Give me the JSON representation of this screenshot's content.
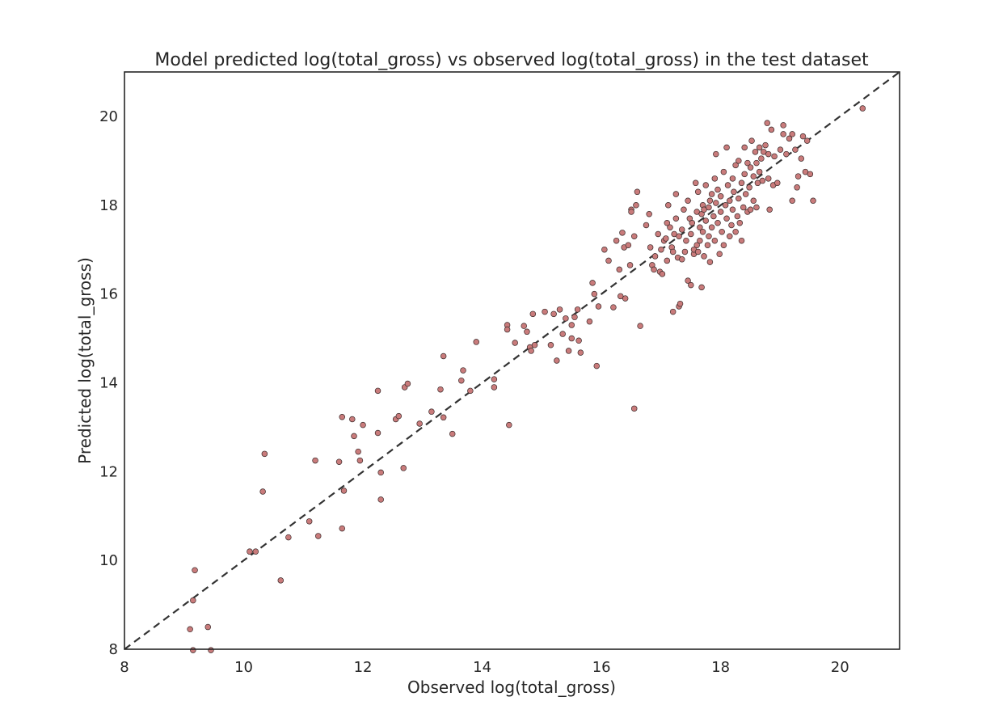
{
  "chart_data": {
    "type": "scatter",
    "title": "Model predicted log(total_gross) vs observed log(total_gross) in the test dataset",
    "xlabel": "Observed log(total_gross)",
    "ylabel": "Predicted log(total_gross)",
    "xlim": [
      8,
      21
    ],
    "ylim": [
      8,
      21
    ],
    "xticks": [
      8,
      10,
      12,
      14,
      16,
      18,
      20
    ],
    "yticks": [
      8,
      10,
      12,
      14,
      16,
      18,
      20
    ],
    "grid": false,
    "reference_line": {
      "style": "dashed",
      "from": [
        8,
        8
      ],
      "to": [
        21,
        21
      ],
      "color": "#333333"
    },
    "marker_color": "#c97b7b",
    "marker_edge_color": "#3a2a2a",
    "points": [
      [
        9.1,
        8.45
      ],
      [
        9.15,
        7.98
      ],
      [
        9.4,
        8.5
      ],
      [
        9.45,
        7.98
      ],
      [
        9.15,
        9.1
      ],
      [
        9.18,
        9.78
      ],
      [
        10.62,
        9.55
      ],
      [
        10.1,
        10.2
      ],
      [
        10.2,
        10.2
      ],
      [
        10.75,
        10.52
      ],
      [
        11.1,
        10.88
      ],
      [
        11.25,
        10.55
      ],
      [
        11.65,
        10.72
      ],
      [
        10.32,
        11.55
      ],
      [
        11.68,
        11.57
      ],
      [
        12.3,
        11.37
      ],
      [
        12.3,
        11.98
      ],
      [
        12.68,
        12.08
      ],
      [
        11.2,
        12.25
      ],
      [
        11.6,
        12.22
      ],
      [
        11.95,
        12.25
      ],
      [
        10.35,
        12.4
      ],
      [
        11.92,
        12.45
      ],
      [
        11.85,
        12.8
      ],
      [
        12.25,
        12.87
      ],
      [
        11.65,
        13.23
      ],
      [
        11.82,
        13.18
      ],
      [
        12.0,
        13.05
      ],
      [
        12.55,
        13.18
      ],
      [
        12.6,
        13.25
      ],
      [
        12.95,
        13.08
      ],
      [
        13.15,
        13.35
      ],
      [
        13.35,
        13.22
      ],
      [
        13.5,
        12.85
      ],
      [
        12.25,
        13.82
      ],
      [
        12.7,
        13.9
      ],
      [
        12.75,
        13.98
      ],
      [
        13.3,
        13.85
      ],
      [
        13.35,
        14.6
      ],
      [
        13.65,
        14.05
      ],
      [
        13.68,
        14.28
      ],
      [
        13.8,
        13.82
      ],
      [
        13.9,
        14.92
      ],
      [
        14.2,
        14.08
      ],
      [
        14.2,
        13.9
      ],
      [
        14.45,
        13.05
      ],
      [
        14.42,
        15.3
      ],
      [
        14.42,
        15.2
      ],
      [
        14.55,
        14.9
      ],
      [
        14.7,
        15.28
      ],
      [
        14.75,
        15.15
      ],
      [
        14.8,
        14.8
      ],
      [
        14.82,
        14.72
      ],
      [
        14.85,
        15.55
      ],
      [
        14.88,
        14.85
      ],
      [
        15.05,
        15.6
      ],
      [
        15.15,
        14.85
      ],
      [
        15.2,
        15.55
      ],
      [
        15.25,
        14.5
      ],
      [
        15.3,
        15.65
      ],
      [
        15.35,
        15.1
      ],
      [
        15.4,
        15.45
      ],
      [
        15.45,
        14.72
      ],
      [
        15.5,
        15.3
      ],
      [
        15.5,
        15.0
      ],
      [
        15.55,
        15.48
      ],
      [
        15.6,
        15.65
      ],
      [
        15.62,
        14.95
      ],
      [
        15.65,
        14.68
      ],
      [
        15.8,
        15.38
      ],
      [
        15.85,
        16.25
      ],
      [
        15.88,
        16.0
      ],
      [
        15.92,
        14.38
      ],
      [
        15.95,
        15.72
      ],
      [
        16.05,
        17.0
      ],
      [
        16.12,
        16.75
      ],
      [
        16.2,
        15.7
      ],
      [
        16.25,
        17.2
      ],
      [
        16.3,
        16.55
      ],
      [
        16.32,
        15.95
      ],
      [
        16.35,
        17.38
      ],
      [
        16.38,
        17.05
      ],
      [
        16.4,
        15.9
      ],
      [
        16.45,
        17.1
      ],
      [
        16.48,
        16.65
      ],
      [
        16.5,
        17.9
      ],
      [
        16.5,
        17.85
      ],
      [
        16.55,
        17.3
      ],
      [
        16.55,
        13.42
      ],
      [
        16.58,
        18.0
      ],
      [
        16.6,
        18.3
      ],
      [
        16.65,
        15.28
      ],
      [
        16.75,
        17.55
      ],
      [
        16.8,
        17.8
      ],
      [
        16.82,
        17.05
      ],
      [
        16.85,
        16.65
      ],
      [
        16.88,
        16.55
      ],
      [
        16.9,
        16.85
      ],
      [
        16.95,
        17.35
      ],
      [
        16.98,
        16.5
      ],
      [
        17.0,
        17.0
      ],
      [
        17.02,
        16.45
      ],
      [
        17.05,
        17.2
      ],
      [
        17.08,
        17.25
      ],
      [
        17.1,
        16.75
      ],
      [
        17.1,
        17.6
      ],
      [
        17.12,
        18.0
      ],
      [
        17.15,
        17.5
      ],
      [
        17.18,
        17.05
      ],
      [
        17.2,
        15.6
      ],
      [
        17.2,
        16.95
      ],
      [
        17.22,
        17.35
      ],
      [
        17.25,
        17.7
      ],
      [
        17.25,
        18.25
      ],
      [
        17.28,
        16.82
      ],
      [
        17.3,
        17.3
      ],
      [
        17.3,
        15.72
      ],
      [
        17.32,
        15.78
      ],
      [
        17.35,
        16.78
      ],
      [
        17.35,
        17.45
      ],
      [
        17.38,
        17.9
      ],
      [
        17.4,
        16.95
      ],
      [
        17.42,
        17.2
      ],
      [
        17.45,
        18.1
      ],
      [
        17.45,
        16.3
      ],
      [
        17.48,
        17.7
      ],
      [
        17.5,
        17.35
      ],
      [
        17.5,
        16.2
      ],
      [
        17.52,
        17.6
      ],
      [
        17.55,
        16.9
      ],
      [
        17.55,
        17.0
      ],
      [
        17.58,
        18.5
      ],
      [
        17.6,
        17.1
      ],
      [
        17.6,
        17.85
      ],
      [
        17.62,
        16.95
      ],
      [
        17.62,
        18.3
      ],
      [
        17.65,
        17.2
      ],
      [
        17.65,
        17.5
      ],
      [
        17.68,
        17.8
      ],
      [
        17.68,
        16.15
      ],
      [
        17.7,
        18.0
      ],
      [
        17.7,
        17.4
      ],
      [
        17.72,
        17.9
      ],
      [
        17.72,
        16.85
      ],
      [
        17.75,
        17.65
      ],
      [
        17.75,
        18.45
      ],
      [
        17.78,
        17.1
      ],
      [
        17.8,
        17.95
      ],
      [
        17.8,
        17.3
      ],
      [
        17.82,
        18.1
      ],
      [
        17.82,
        16.72
      ],
      [
        17.85,
        17.5
      ],
      [
        17.85,
        18.25
      ],
      [
        17.88,
        17.75
      ],
      [
        17.9,
        18.6
      ],
      [
        17.9,
        17.2
      ],
      [
        17.92,
        18.05
      ],
      [
        17.92,
        19.15
      ],
      [
        17.95,
        17.6
      ],
      [
        17.95,
        18.35
      ],
      [
        17.98,
        16.9
      ],
      [
        18.0,
        17.85
      ],
      [
        18.0,
        18.2
      ],
      [
        18.02,
        17.4
      ],
      [
        18.05,
        18.75
      ],
      [
        18.05,
        17.1
      ],
      [
        18.08,
        18.0
      ],
      [
        18.1,
        17.7
      ],
      [
        18.1,
        19.3
      ],
      [
        18.12,
        18.45
      ],
      [
        18.15,
        17.3
      ],
      [
        18.15,
        18.1
      ],
      [
        18.18,
        17.55
      ],
      [
        18.2,
        18.6
      ],
      [
        18.2,
        17.9
      ],
      [
        18.22,
        18.3
      ],
      [
        18.25,
        17.4
      ],
      [
        18.25,
        18.9
      ],
      [
        18.28,
        17.75
      ],
      [
        18.3,
        19.0
      ],
      [
        18.3,
        18.15
      ],
      [
        18.32,
        17.6
      ],
      [
        18.35,
        18.5
      ],
      [
        18.35,
        17.2
      ],
      [
        18.38,
        17.95
      ],
      [
        18.4,
        19.3
      ],
      [
        18.4,
        18.7
      ],
      [
        18.42,
        18.25
      ],
      [
        18.45,
        17.85
      ],
      [
        18.45,
        18.95
      ],
      [
        18.48,
        18.4
      ],
      [
        18.5,
        17.9
      ],
      [
        18.5,
        18.85
      ],
      [
        18.52,
        19.45
      ],
      [
        18.55,
        18.65
      ],
      [
        18.55,
        18.1
      ],
      [
        18.58,
        19.2
      ],
      [
        18.6,
        17.95
      ],
      [
        18.6,
        18.95
      ],
      [
        18.62,
        18.5
      ],
      [
        18.65,
        19.3
      ],
      [
        18.65,
        18.75
      ],
      [
        18.68,
        19.05
      ],
      [
        18.7,
        18.55
      ],
      [
        18.72,
        19.2
      ],
      [
        18.75,
        19.35
      ],
      [
        18.78,
        19.85
      ],
      [
        18.8,
        18.6
      ],
      [
        18.8,
        19.15
      ],
      [
        18.82,
        17.9
      ],
      [
        18.85,
        19.7
      ],
      [
        18.88,
        18.45
      ],
      [
        18.9,
        19.1
      ],
      [
        18.95,
        18.5
      ],
      [
        19.0,
        19.25
      ],
      [
        19.05,
        19.8
      ],
      [
        19.05,
        19.6
      ],
      [
        19.1,
        19.15
      ],
      [
        19.15,
        19.5
      ],
      [
        19.2,
        18.1
      ],
      [
        19.2,
        19.6
      ],
      [
        19.25,
        19.25
      ],
      [
        19.28,
        18.4
      ],
      [
        19.3,
        18.65
      ],
      [
        19.35,
        19.05
      ],
      [
        19.38,
        19.55
      ],
      [
        19.42,
        18.75
      ],
      [
        19.45,
        19.45
      ],
      [
        19.5,
        18.7
      ],
      [
        19.55,
        18.1
      ],
      [
        20.38,
        20.18
      ]
    ]
  }
}
